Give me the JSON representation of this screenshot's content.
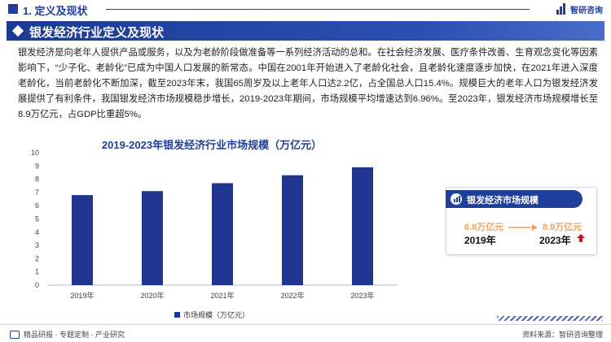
{
  "header": {
    "section_title": "1. 定义及现状",
    "logo_text": "智研咨询"
  },
  "banner": {
    "title": "银发经济行业定义及现状"
  },
  "body_text": "银发经济是向老年人提供产品或服务，以及为老龄阶段做准备等一系列经济活动的总和。在社会经济发展、医疗条件改善、生育观念变化等因素影响下，“少子化、老龄化”已成为中国人口发展的新常态。中国在2001年开始进入了老龄化社会，且老龄化速度逐步加快，在2021年进入深度老龄化，当前老龄化不断加深，截至2023年末，我国65周岁及以上老年人口达2.2亿，占全国总人口15.4%。规模巨大的老年人口为银发经济发展提供了有利条件，我国银发经济市场规模稳步增长，2019-2023年期间，市场规模平均增速达到6.96%。至2023年，银发经济市场规模增长至8.9万亿元，占GDP比重超5%。",
  "chart_data": {
    "type": "bar",
    "title": "2019-2023年银发经济行业市场规模（万亿元）",
    "categories": [
      "2019年",
      "2020年",
      "2021年",
      "2022年",
      "2023年"
    ],
    "series": [
      {
        "name": "市场规模（万亿元）",
        "values": [
          6.8,
          7.1,
          7.7,
          8.3,
          8.9
        ],
        "color": "#1f3590"
      }
    ],
    "ylim": [
      0,
      10
    ],
    "yticks": [
      0,
      1,
      2,
      3,
      4,
      5,
      6,
      7,
      8,
      9,
      10
    ],
    "legend_position": "bottom",
    "grid": false
  },
  "side_card": {
    "title": "银发经济市场规模",
    "from_value": "6.8万亿元",
    "from_year": "2019年",
    "to_value": "8.9万亿元",
    "to_year": "2023年",
    "accent_color": "#f0a25a",
    "up_color": "#c0182a"
  },
  "footer": {
    "left_text": "精品研报 · 专题定制 · 产业研究",
    "source_text": "资料来源：智研咨询整理"
  }
}
